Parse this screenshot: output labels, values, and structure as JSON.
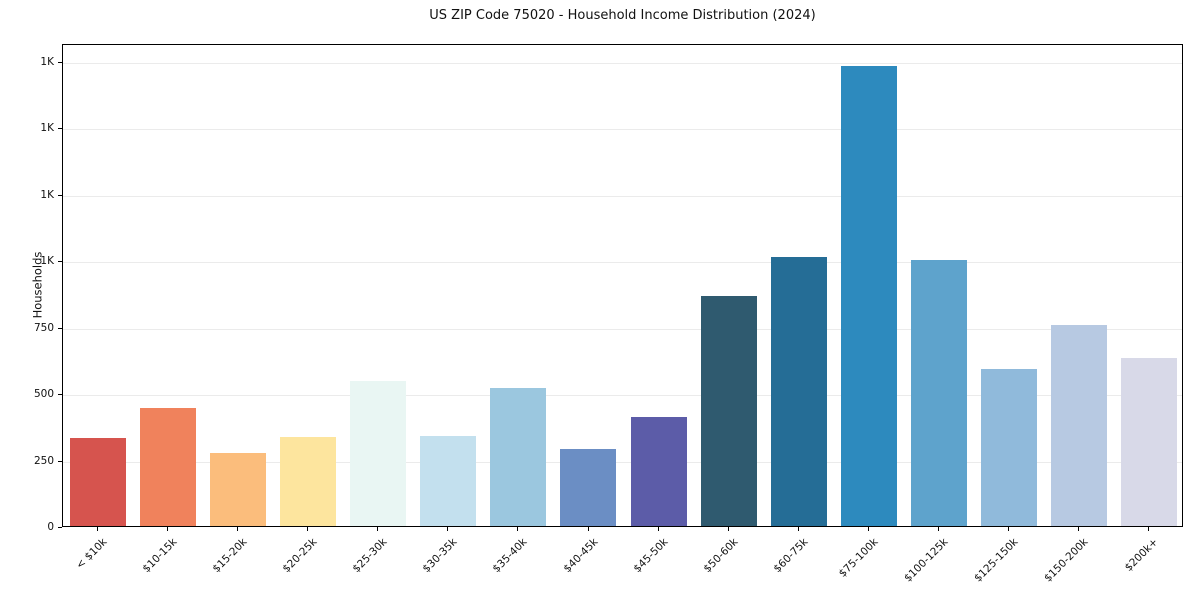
{
  "title": "US ZIP Code 75020 - Household Income Distribution (2024)",
  "ylabel": "Households",
  "chart_data": {
    "type": "bar",
    "title": "US ZIP Code 75020 - Household Income Distribution (2024)",
    "xlabel": "",
    "ylabel": "Households",
    "categories": [
      "< $10k",
      "$10-15k",
      "$15-20k",
      "$20-25k",
      "$25-30k",
      "$30-35k",
      "$35-40k",
      "$40-45k",
      "$45-50k",
      "$50-60k",
      "$60-75k",
      "$75-100k",
      "$100-125k",
      "$125-150k",
      "$150-200k",
      "$200k+"
    ],
    "values": [
      330,
      445,
      275,
      335,
      545,
      340,
      520,
      290,
      410,
      865,
      1010,
      1730,
      1000,
      590,
      755,
      630
    ],
    "bar_colors": [
      "#d6544e",
      "#f0825c",
      "#fbbd7c",
      "#fde59e",
      "#e9f6f3",
      "#c3e0ee",
      "#9bc7df",
      "#6b8ec4",
      "#5c5ca8",
      "#2f5a6f",
      "#256d96",
      "#2d8abe",
      "#5ea3cc",
      "#90badb",
      "#b7c9e2",
      "#d8d9e8"
    ],
    "ylim": [
      0,
      1816
    ],
    "yticks": [
      {
        "value": 0,
        "label": "0"
      },
      {
        "value": 250,
        "label": "250"
      },
      {
        "value": 500,
        "label": "500"
      },
      {
        "value": 750,
        "label": "750"
      },
      {
        "value": 1000,
        "label": "1K"
      },
      {
        "value": 1250,
        "label": "1K"
      },
      {
        "value": 1500,
        "label": "1K"
      },
      {
        "value": 1750,
        "label": "1K"
      }
    ],
    "grid": true,
    "legend": null,
    "background": "#ffffff"
  }
}
